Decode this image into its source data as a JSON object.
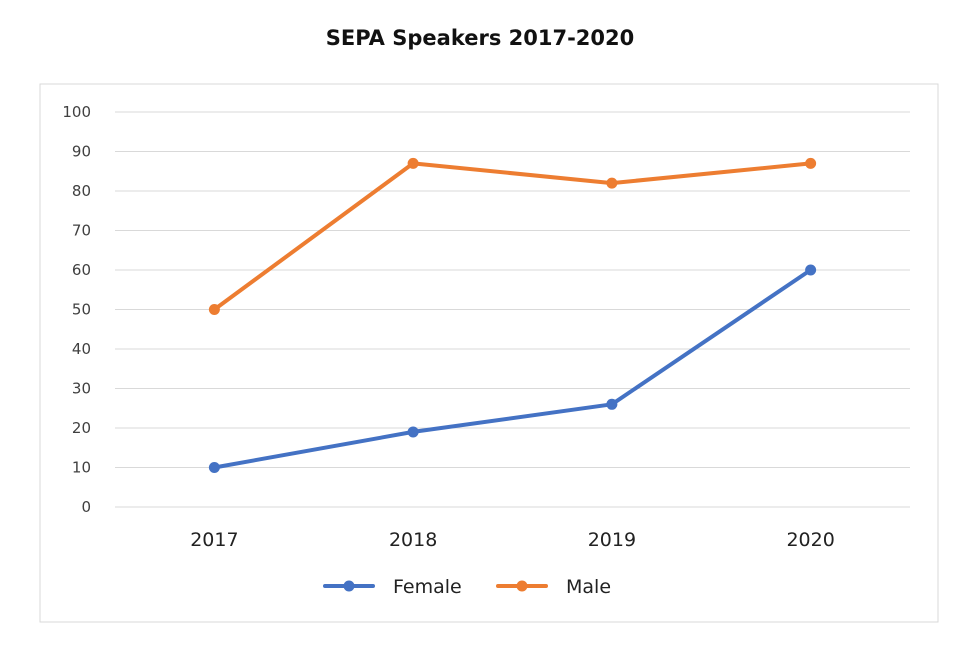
{
  "chart_data": {
    "type": "line",
    "title": "SEPA Speakers 2017-2020",
    "categories": [
      "2017",
      "2018",
      "2019",
      "2020"
    ],
    "series": [
      {
        "name": "Female",
        "values": [
          10,
          19,
          26,
          60
        ],
        "color": "#4472C4"
      },
      {
        "name": "Male",
        "values": [
          50,
          87,
          82,
          87
        ],
        "color": "#ED7D31"
      }
    ],
    "ylim": [
      0,
      100
    ],
    "yticks": [
      0,
      10,
      20,
      30,
      40,
      50,
      60,
      70,
      80,
      90,
      100
    ],
    "grid": true,
    "legend_position": "bottom",
    "xlabel": "",
    "ylabel": ""
  }
}
